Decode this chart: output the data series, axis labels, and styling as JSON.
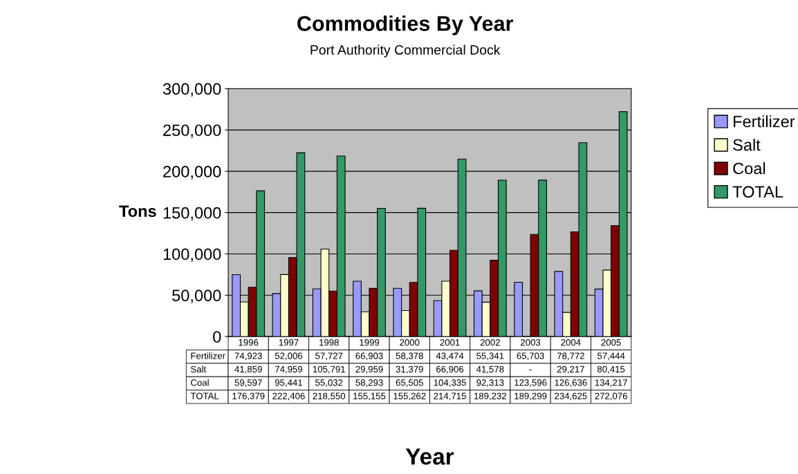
{
  "chart_data": {
    "type": "bar",
    "title": "Commodities By Year",
    "subtitle": "Port Authority Commercial Dock",
    "xlabel": "Year",
    "ylabel": "Tons",
    "categories": [
      "1996",
      "1997",
      "1998",
      "1999",
      "2000",
      "2001",
      "2002",
      "2003",
      "2004",
      "2005"
    ],
    "series": [
      {
        "name": "Fertilizer",
        "color": "#9999ff",
        "values": [
          74923,
          52006,
          57727,
          66903,
          58378,
          43474,
          55341,
          65703,
          78772,
          57444
        ],
        "value_labels": [
          "74,923",
          "52,006",
          "57,727",
          "66,903",
          "58,378",
          "43,474",
          "55,341",
          "65,703",
          "78,772",
          "57,444"
        ]
      },
      {
        "name": "Salt",
        "color": "#ffffcc",
        "values": [
          41859,
          74959,
          105791,
          29959,
          31379,
          66906,
          41578,
          null,
          29217,
          80415
        ],
        "value_labels": [
          "41,859",
          "74,959",
          "105,791",
          "29,959",
          "31,379",
          "66,906",
          "41,578",
          "-",
          "29,217",
          "80,415"
        ]
      },
      {
        "name": "Coal",
        "color": "#800000",
        "values": [
          59597,
          95441,
          55032,
          58293,
          65505,
          104335,
          92313,
          123596,
          126636,
          134217
        ],
        "value_labels": [
          "59,597",
          "95,441",
          "55,032",
          "58,293",
          "65,505",
          "104,335",
          "92,313",
          "123,596",
          "126,636",
          "134,217"
        ]
      },
      {
        "name": "TOTAL",
        "color": "#339966",
        "values": [
          176379,
          222406,
          218550,
          155155,
          155262,
          214715,
          189232,
          189299,
          234625,
          272076
        ],
        "value_labels": [
          "176,379",
          "222,406",
          "218,550",
          "155,155",
          "155,262",
          "214,715",
          "189,232",
          "189,299",
          "234,625",
          "272,076"
        ]
      }
    ],
    "ylim": [
      0,
      300000
    ],
    "yticks": [
      0,
      {
        "value": 50000,
        "label": "50,000"
      },
      {
        "value": 100000,
        "label": "100,000"
      },
      {
        "value": 150000,
        "label": "150,000"
      },
      {
        "value": 200000,
        "label": "200,000"
      },
      {
        "value": 250000,
        "label": "250,000"
      },
      {
        "value": 300000,
        "label": "300,000"
      }
    ],
    "grid": "y",
    "legend": "right"
  }
}
